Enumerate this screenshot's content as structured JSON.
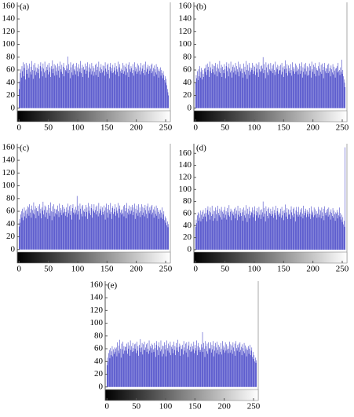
{
  "chart_data": [
    {
      "type": "histogram",
      "label": "(a)",
      "color": "#3a3ac4",
      "xlim": [
        -3,
        258
      ],
      "xticks": [
        0,
        50,
        100,
        150,
        200,
        250
      ],
      "ylim": [
        -4,
        166
      ],
      "yticks": [
        0,
        20,
        40,
        60,
        80,
        100,
        120,
        140,
        160
      ],
      "values": [
        30,
        42,
        55,
        61,
        48,
        66,
        58,
        72,
        50,
        63,
        69,
        45,
        71,
        60,
        54,
        67,
        62,
        48,
        70,
        57,
        65,
        53,
        74,
        60,
        46,
        68,
        59,
        71,
        52,
        64,
        57,
        63,
        55,
        69,
        61,
        47,
        66,
        72,
        58,
        64,
        50,
        70,
        62,
        56,
        73,
        59,
        48,
        65,
        60,
        68,
        53,
        71,
        57,
        64,
        49,
        66,
        61,
        75,
        55,
        62,
        69,
        51,
        67,
        58,
        64,
        52,
        70,
        59,
        66,
        48,
        73,
        61,
        57,
        68,
        54,
        65,
        71,
        50,
        63,
        60,
        58,
        67,
        62,
        81,
        55,
        69,
        60,
        47,
        72,
        64,
        56,
        68,
        52,
        70,
        61,
        59,
        66,
        53,
        71,
        58,
        64,
        50,
        69,
        62,
        57,
        74,
        55,
        63,
        68,
        49,
        65,
        60,
        61,
        70,
        54,
        66,
        59,
        72,
        48,
        64,
        57,
        69,
        62,
        53,
        71,
        58,
        66,
        51,
        63,
        57,
        68,
        52,
        70,
        60,
        65,
        49,
        73,
        58,
        64,
        55,
        69,
        61,
        56,
        67,
        59,
        66,
        51,
        72,
        62,
        57,
        68,
        54,
        70,
        60,
        47,
        65,
        71,
        58,
        63,
        55,
        68,
        56,
        64,
        59,
        71,
        53,
        66,
        61,
        57,
        73,
        50,
        64,
        69,
        58,
        62,
        55,
        60,
        71,
        54,
        67,
        58,
        65,
        52,
        70,
        62,
        56,
        68,
        49,
        72,
        61,
        57,
        66,
        63,
        55,
        69,
        60,
        51,
        72,
        58,
        65,
        62,
        54,
        70,
        57,
        67,
        59,
        64,
        53,
        71,
        58,
        62,
        67,
        55,
        69,
        60,
        52,
        73,
        57,
        64,
        61,
        68,
        54,
        66,
        59,
        62,
        68,
        55,
        70,
        58,
        63,
        50,
        67,
        61,
        56,
        69,
        53,
        65,
        59,
        48,
        62,
        58,
        64,
        51,
        60,
        55,
        47,
        58,
        52,
        44,
        50,
        40,
        46,
        36,
        30,
        25,
        20
      ]
    },
    {
      "type": "histogram",
      "label": "(b)",
      "color": "#3a3ac4",
      "xlim": [
        -3,
        258
      ],
      "xticks": [
        0,
        50,
        100,
        150,
        200,
        250
      ],
      "ylim": [
        -4,
        166
      ],
      "yticks": [
        0,
        20,
        40,
        60,
        80,
        100,
        120,
        140,
        160
      ],
      "values": [
        40,
        52,
        47,
        58,
        44,
        61,
        50,
        66,
        48,
        57,
        63,
        45,
        60,
        54,
        49,
        62,
        63,
        57,
        68,
        52,
        70,
        60,
        65,
        49,
        73,
        58,
        64,
        55,
        69,
        61,
        56,
        67,
        66,
        53,
        71,
        58,
        64,
        50,
        69,
        62,
        57,
        74,
        55,
        63,
        68,
        49,
        65,
        60,
        55,
        69,
        61,
        47,
        66,
        72,
        58,
        64,
        50,
        70,
        62,
        56,
        73,
        59,
        48,
        65,
        68,
        56,
        64,
        59,
        71,
        53,
        66,
        61,
        57,
        73,
        50,
        64,
        69,
        58,
        62,
        55,
        62,
        48,
        70,
        57,
        65,
        53,
        74,
        60,
        46,
        68,
        59,
        71,
        52,
        64,
        57,
        63,
        60,
        71,
        54,
        67,
        58,
        65,
        52,
        70,
        62,
        56,
        68,
        49,
        72,
        61,
        57,
        66,
        58,
        67,
        62,
        80,
        55,
        69,
        60,
        47,
        72,
        64,
        56,
        68,
        52,
        70,
        61,
        59,
        71,
        58,
        62,
        67,
        55,
        69,
        60,
        52,
        73,
        57,
        64,
        61,
        68,
        54,
        66,
        59,
        60,
        68,
        53,
        71,
        57,
        64,
        49,
        66,
        61,
        75,
        55,
        62,
        69,
        51,
        67,
        58,
        63,
        55,
        69,
        60,
        51,
        72,
        58,
        65,
        62,
        54,
        70,
        57,
        67,
        59,
        64,
        53,
        61,
        70,
        54,
        66,
        59,
        72,
        48,
        64,
        57,
        69,
        62,
        53,
        71,
        58,
        66,
        51,
        64,
        52,
        70,
        59,
        66,
        48,
        73,
        61,
        57,
        68,
        54,
        65,
        71,
        50,
        63,
        60,
        59,
        66,
        51,
        72,
        62,
        57,
        68,
        54,
        70,
        60,
        47,
        65,
        71,
        58,
        63,
        55,
        62,
        68,
        55,
        70,
        58,
        63,
        50,
        67,
        61,
        56,
        69,
        53,
        65,
        59,
        48,
        62,
        63,
        66,
        56,
        71,
        58,
        60,
        52,
        64,
        57,
        76,
        54,
        60,
        50,
        45,
        40,
        33
      ]
    },
    {
      "type": "histogram",
      "label": "(c)",
      "color": "#3a3ac4",
      "xlim": [
        -3,
        258
      ],
      "xticks": [
        0,
        50,
        100,
        150,
        200,
        250
      ],
      "ylim": [
        -4,
        166
      ],
      "yticks": [
        0,
        20,
        40,
        60,
        80,
        100,
        120,
        140,
        160
      ],
      "values": [
        36,
        48,
        42,
        55,
        60,
        50,
        64,
        46,
        58,
        66,
        52,
        61,
        49,
        63,
        56,
        68,
        66,
        53,
        71,
        58,
        64,
        50,
        69,
        62,
        57,
        74,
        55,
        63,
        68,
        49,
        65,
        60,
        60,
        68,
        53,
        71,
        57,
        64,
        49,
        66,
        61,
        75,
        55,
        62,
        69,
        51,
        67,
        58,
        62,
        48,
        70,
        57,
        65,
        53,
        74,
        60,
        46,
        68,
        59,
        71,
        52,
        64,
        57,
        63,
        63,
        55,
        69,
        60,
        51,
        72,
        58,
        65,
        62,
        54,
        70,
        57,
        67,
        59,
        64,
        53,
        59,
        66,
        51,
        72,
        62,
        57,
        68,
        54,
        70,
        60,
        47,
        65,
        71,
        58,
        63,
        55,
        58,
        67,
        62,
        84,
        55,
        69,
        60,
        47,
        72,
        64,
        56,
        68,
        52,
        70,
        61,
        59,
        64,
        52,
        70,
        59,
        66,
        48,
        73,
        61,
        57,
        68,
        54,
        65,
        71,
        50,
        63,
        60,
        71,
        58,
        62,
        67,
        55,
        69,
        60,
        52,
        73,
        57,
        64,
        61,
        68,
        54,
        66,
        59,
        55,
        69,
        61,
        47,
        66,
        72,
        58,
        64,
        50,
        70,
        62,
        56,
        73,
        59,
        48,
        65,
        68,
        56,
        64,
        59,
        71,
        53,
        66,
        61,
        57,
        73,
        50,
        64,
        69,
        58,
        62,
        55,
        63,
        57,
        68,
        52,
        70,
        60,
        65,
        49,
        73,
        58,
        64,
        55,
        69,
        61,
        56,
        67,
        61,
        70,
        54,
        66,
        59,
        72,
        48,
        64,
        57,
        69,
        62,
        53,
        71,
        58,
        66,
        51,
        60,
        71,
        54,
        67,
        58,
        65,
        52,
        70,
        62,
        56,
        68,
        49,
        72,
        61,
        57,
        66,
        62,
        68,
        55,
        70,
        58,
        63,
        50,
        67,
        61,
        56,
        69,
        53,
        65,
        59,
        48,
        62,
        56,
        62,
        50,
        58,
        66,
        48,
        55,
        60,
        46,
        52,
        42,
        49,
        38,
        44,
        35,
        40
      ]
    },
    {
      "type": "histogram",
      "label": "(d)",
      "color": "#3a3ac4",
      "xlim": [
        -3,
        258
      ],
      "xticks": [
        0,
        50,
        100,
        150,
        200,
        250
      ],
      "ylim": [
        -4,
        176
      ],
      "yticks": [
        0,
        20,
        40,
        60,
        80,
        100,
        120,
        140,
        160
      ],
      "values": [
        38,
        50,
        44,
        57,
        62,
        48,
        60,
        53,
        65,
        47,
        58,
        63,
        51,
        66,
        55,
        60,
        55,
        69,
        61,
        47,
        66,
        72,
        58,
        64,
        50,
        70,
        62,
        56,
        73,
        59,
        48,
        65,
        64,
        52,
        70,
        59,
        66,
        48,
        73,
        61,
        57,
        68,
        54,
        65,
        71,
        50,
        63,
        60,
        66,
        53,
        71,
        58,
        64,
        50,
        69,
        62,
        57,
        74,
        55,
        63,
        68,
        49,
        65,
        60,
        63,
        57,
        68,
        52,
        70,
        60,
        65,
        49,
        73,
        58,
        64,
        55,
        69,
        61,
        56,
        67,
        62,
        48,
        70,
        57,
        65,
        53,
        74,
        60,
        46,
        68,
        59,
        71,
        52,
        64,
        57,
        63,
        61,
        70,
        54,
        66,
        59,
        72,
        48,
        64,
        57,
        69,
        62,
        53,
        71,
        58,
        66,
        51,
        58,
        67,
        62,
        80,
        55,
        69,
        60,
        47,
        72,
        64,
        56,
        68,
        52,
        70,
        61,
        59,
        68,
        56,
        64,
        59,
        71,
        53,
        66,
        61,
        57,
        73,
        50,
        64,
        69,
        58,
        62,
        55,
        60,
        68,
        53,
        71,
        57,
        64,
        49,
        66,
        61,
        75,
        55,
        62,
        69,
        51,
        67,
        58,
        59,
        66,
        51,
        72,
        62,
        57,
        68,
        54,
        70,
        60,
        47,
        65,
        71,
        58,
        63,
        55,
        71,
        58,
        62,
        67,
        55,
        69,
        60,
        52,
        73,
        57,
        64,
        61,
        68,
        54,
        66,
        59,
        63,
        55,
        69,
        60,
        51,
        72,
        58,
        65,
        62,
        54,
        70,
        57,
        67,
        59,
        64,
        53,
        60,
        71,
        54,
        67,
        58,
        65,
        52,
        70,
        62,
        56,
        68,
        49,
        72,
        61,
        57,
        66,
        62,
        68,
        55,
        70,
        58,
        63,
        50,
        67,
        61,
        56,
        69,
        53,
        65,
        59,
        48,
        62,
        60,
        66,
        52,
        62,
        57,
        70,
        55,
        61,
        50,
        58,
        46,
        54,
        42,
        48,
        38,
        170
      ]
    },
    {
      "type": "histogram",
      "label": "(e)",
      "color": "#3a3ac4",
      "xlim": [
        -3,
        258
      ],
      "xticks": [
        0,
        50,
        100,
        150,
        200,
        250
      ],
      "ylim": [
        -4,
        166
      ],
      "yticks": [
        0,
        20,
        40,
        60,
        80,
        100,
        120,
        140,
        160
      ],
      "values": [
        34,
        46,
        40,
        53,
        58,
        45,
        61,
        50,
        56,
        64,
        48,
        59,
        52,
        62,
        55,
        60,
        62,
        48,
        70,
        57,
        65,
        53,
        74,
        60,
        46,
        68,
        59,
        71,
        52,
        64,
        57,
        63,
        63,
        57,
        68,
        52,
        70,
        60,
        65,
        49,
        73,
        58,
        64,
        55,
        69,
        61,
        56,
        67,
        60,
        68,
        53,
        71,
        57,
        64,
        49,
        66,
        61,
        75,
        55,
        62,
        69,
        51,
        67,
        58,
        71,
        58,
        62,
        67,
        55,
        69,
        60,
        52,
        73,
        57,
        64,
        61,
        68,
        54,
        66,
        59,
        55,
        69,
        61,
        47,
        66,
        72,
        58,
        64,
        50,
        70,
        62,
        56,
        73,
        59,
        48,
        65,
        64,
        52,
        70,
        59,
        66,
        48,
        73,
        61,
        57,
        68,
        54,
        65,
        71,
        50,
        63,
        60,
        66,
        53,
        71,
        58,
        64,
        50,
        69,
        62,
        57,
        74,
        55,
        63,
        68,
        49,
        65,
        60,
        59,
        66,
        51,
        72,
        62,
        57,
        68,
        54,
        70,
        60,
        47,
        65,
        71,
        58,
        63,
        55,
        68,
        56,
        64,
        59,
        71,
        53,
        66,
        61,
        57,
        73,
        50,
        64,
        69,
        58,
        62,
        55,
        58,
        67,
        62,
        86,
        55,
        69,
        60,
        47,
        72,
        64,
        56,
        68,
        52,
        70,
        61,
        59,
        61,
        70,
        54,
        66,
        59,
        72,
        48,
        64,
        57,
        69,
        62,
        53,
        71,
        58,
        66,
        51,
        63,
        55,
        69,
        60,
        51,
        72,
        58,
        65,
        62,
        54,
        70,
        57,
        67,
        59,
        64,
        53,
        60,
        71,
        54,
        67,
        58,
        65,
        52,
        70,
        62,
        56,
        68,
        49,
        72,
        61,
        57,
        66,
        62,
        68,
        55,
        70,
        58,
        63,
        50,
        67,
        61,
        56,
        69,
        53,
        65,
        59,
        48,
        62,
        58,
        64,
        52,
        60,
        66,
        50,
        57,
        62,
        47,
        55,
        44,
        50,
        40,
        46,
        38,
        42
      ]
    }
  ]
}
